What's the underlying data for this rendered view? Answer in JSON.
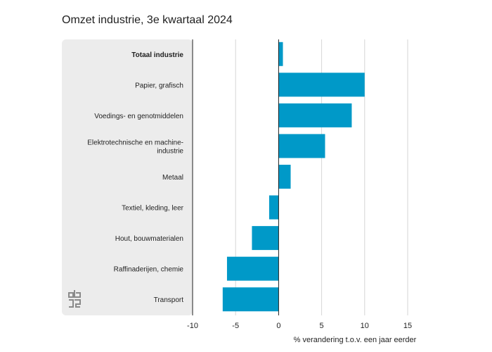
{
  "page": {
    "title": "Omzet industrie, 3e kwartaal 2024"
  },
  "logo": {
    "name": "cbs-logo-icon"
  },
  "chart_data": {
    "type": "bar",
    "orientation": "horizontal",
    "title": "Omzet industrie, 3e kwartaal 2024",
    "xlabel": "% verandering t.o.v. een jaar eerder",
    "ylabel": "",
    "xlim": [
      -10,
      15
    ],
    "xticks": [
      -10,
      -5,
      0,
      5,
      10,
      15
    ],
    "grid": true,
    "bar_color": "#0099c8",
    "categories": [
      "Totaal industrie",
      "Papier, grafisch",
      "Voedings- en genotmiddelen",
      "Elektrotechnische en machine-industrie",
      "Metaal",
      "Textiel, kleding, leer",
      "Hout, bouwmaterialen",
      "Raffinaderijen, chemie",
      "Transport"
    ],
    "category_display": [
      [
        "Totaal industrie"
      ],
      [
        "Papier, grafisch"
      ],
      [
        "Voedings- en genotmiddelen"
      ],
      [
        "Elektrotechnische en machine-",
        "industrie"
      ],
      [
        "Metaal"
      ],
      [
        "Textiel, kleding, leer"
      ],
      [
        "Hout, bouwmaterialen"
      ],
      [
        "Raffinaderijen, chemie"
      ],
      [
        "Transport"
      ]
    ],
    "values": [
      0.5,
      10.0,
      8.5,
      5.4,
      1.4,
      -1.1,
      -3.1,
      -6.0,
      -6.5
    ]
  }
}
